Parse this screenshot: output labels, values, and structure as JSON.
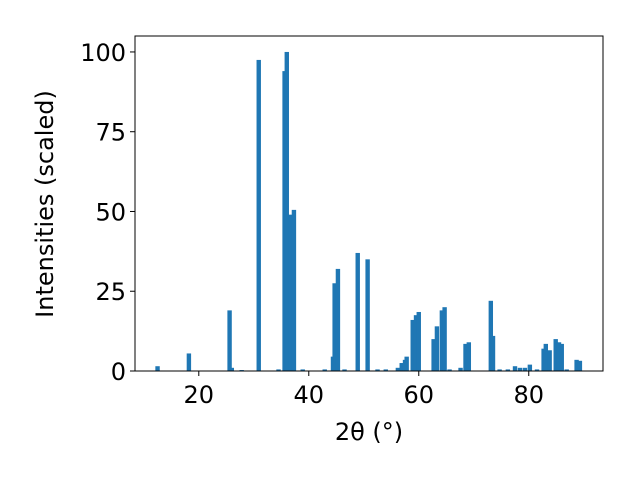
{
  "chart_data": {
    "type": "bar",
    "xlabel": "2θ (°)",
    "ylabel": "Intensities (scaled)",
    "color": "#1f77b4",
    "x": [
      12.5,
      18.2,
      25.6,
      26.0,
      27.8,
      30.9,
      34.5,
      35.6,
      36.0,
      36.7,
      37.3,
      38.9,
      42.9,
      44.4,
      44.7,
      45.3,
      46.5,
      48.9,
      50.7,
      52.5,
      54.0,
      56.2,
      56.9,
      57.5,
      57.8,
      58.9,
      59.5,
      60.0,
      62.7,
      63.3,
      64.2,
      64.7,
      65.6,
      67.6,
      68.5,
      69.1,
      73.1,
      73.5,
      74.7,
      76.2,
      77.5,
      78.4,
      79.3,
      80.2,
      81.5,
      82.7,
      83.1,
      83.8,
      84.9,
      85.5,
      86.0,
      86.9,
      88.7,
      89.3
    ],
    "values": [
      1.5,
      5.5,
      19,
      1,
      0.3,
      97.5,
      0.5,
      94,
      100,
      49,
      50.5,
      0.5,
      0.5,
      4.5,
      27.5,
      32,
      0.5,
      37,
      35,
      0.5,
      0.5,
      1,
      2.5,
      3.5,
      4.5,
      16,
      17.5,
      18.5,
      10,
      14,
      19,
      20,
      0.5,
      1,
      8.5,
      9,
      22,
      11,
      0.5,
      0.5,
      1.5,
      1,
      1,
      2,
      0.5,
      7,
      8.5,
      6.5,
      10,
      9,
      8.5,
      0.5,
      3.5,
      3.2
    ],
    "xlim": [
      8.4,
      93.5
    ],
    "xticks": [
      20,
      40,
      60,
      80
    ],
    "ylim": [
      0,
      105
    ],
    "yticks": [
      0,
      25,
      50,
      75,
      100
    ]
  }
}
